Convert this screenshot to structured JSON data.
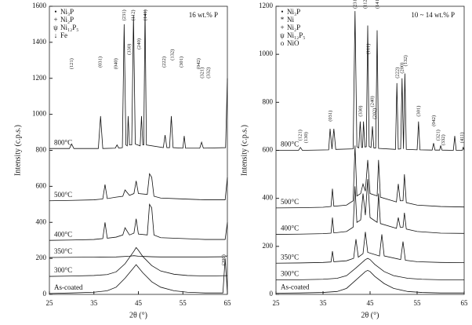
{
  "chart_data": [
    {
      "type": "line",
      "panel_label": "16 wt.% P",
      "xlabel": "2θ (°)",
      "ylabel": "Intensity (c.p.s.)",
      "xlim": [
        25,
        65
      ],
      "xticks": [
        25,
        35,
        45,
        55,
        65
      ],
      "ylim": [
        0,
        1600
      ],
      "yticks": [
        0,
        200,
        400,
        600,
        800,
        1000,
        1200,
        1400,
        1600
      ],
      "color": "#111111",
      "legend": [
        {
          "symbol": "•",
          "label": "Ni₃P"
        },
        {
          "symbol": "+",
          "label": "Ni₂P"
        },
        {
          "symbol": "ψ",
          "label": "Ni₁₂P₅"
        },
        {
          "symbol": "↓",
          "label": "Fe"
        }
      ],
      "series": [
        {
          "name": "As-coated",
          "x": [
            25,
            30,
            35,
            38,
            40,
            42,
            43,
            44,
            44.5,
            45,
            46,
            48,
            50,
            53,
            56,
            60,
            64,
            64.5,
            65
          ],
          "values": [
            5,
            8,
            12,
            20,
            40,
            90,
            120,
            150,
            165,
            150,
            120,
            70,
            40,
            20,
            12,
            8,
            8,
            200,
            10
          ]
        },
        {
          "name": "300°C",
          "x": [
            25,
            30,
            35,
            38,
            40,
            42,
            44,
            44.5,
            45,
            46,
            48,
            50,
            53,
            56,
            60,
            65
          ],
          "values": [
            100,
            102,
            105,
            110,
            125,
            170,
            240,
            260,
            245,
            210,
            160,
            130,
            112,
            105,
            102,
            104
          ]
        },
        {
          "name": "350°C",
          "x": [
            25,
            30,
            35,
            40,
            43,
            44,
            45,
            47,
            48,
            50,
            55,
            60,
            64.5,
            65
          ],
          "values": [
            205,
            206,
            207,
            208,
            212,
            215,
            212,
            210,
            209,
            208,
            208,
            208,
            209,
            215
          ]
        },
        {
          "name": "400°C",
          "x": [
            25,
            30,
            35,
            37,
            37.5,
            38,
            40,
            41.5,
            42,
            43,
            44,
            44.5,
            45,
            47,
            47.5,
            48,
            48.5,
            50,
            55,
            60,
            64.5,
            65
          ],
          "values": [
            300,
            302,
            305,
            310,
            400,
            312,
            318,
            330,
            370,
            330,
            340,
            420,
            335,
            330,
            500,
            480,
            330,
            315,
            310,
            305,
            305,
            400
          ]
        },
        {
          "name": "500°C",
          "x": [
            25,
            30,
            35,
            37,
            37.5,
            38,
            40,
            41.5,
            42,
            43,
            44,
            44.5,
            45,
            47,
            47.5,
            48,
            48.5,
            50,
            55,
            60,
            64.5,
            65
          ],
          "values": [
            520,
            522,
            525,
            530,
            610,
            532,
            540,
            545,
            580,
            550,
            560,
            630,
            560,
            555,
            670,
            650,
            545,
            535,
            530,
            525,
            525,
            650
          ]
        },
        {
          "name": "800°C",
          "x": [
            25,
            29.5,
            30,
            30.5,
            36,
            36.5,
            37,
            39.8,
            40.2,
            40.6,
            41.4,
            41.8,
            42.2,
            42.5,
            42.7,
            43,
            43.5,
            43.9,
            44.3,
            45.4,
            45.7,
            46,
            46.2,
            46.5,
            46.8,
            50.6,
            51,
            51.4,
            52,
            52.4,
            52.8,
            55,
            55.3,
            55.6,
            58.8,
            59.2,
            59.6,
            64.6,
            65
          ],
          "values": [
            810,
            810,
            835,
            810,
            810,
            990,
            810,
            812,
            830,
            812,
            815,
            1500,
            830,
            825,
            990,
            830,
            830,
            1550,
            835,
            825,
            990,
            830,
            830,
            1580,
            830,
            815,
            885,
            815,
            815,
            990,
            815,
            812,
            880,
            812,
            812,
            845,
            812,
            815,
            1200
          ]
        }
      ],
      "annotations": [
        {
          "text": "(121)",
          "x": 30,
          "y": 1250
        },
        {
          "text": "(031)",
          "x": 36.5,
          "y": 1260
        },
        {
          "text": "(040)",
          "x": 40,
          "y": 1250
        },
        {
          "text": "(231)",
          "x": 41.8,
          "y": 1520
        },
        {
          "text": "(330)",
          "x": 43,
          "y": 1330
        },
        {
          "text": "(112)",
          "x": 43.9,
          "y": 1520
        },
        {
          "text": "(240)",
          "x": 45.2,
          "y": 1360
        },
        {
          "text": "(141)",
          "x": 46.6,
          "y": 1520
        },
        {
          "text": "(222)",
          "x": 50.8,
          "y": 1260
        },
        {
          "text": "(132)",
          "x": 52.7,
          "y": 1300
        },
        {
          "text": "(301)",
          "x": 54.7,
          "y": 1260
        },
        {
          "text": "(042)",
          "x": 58.6,
          "y": 1250
        },
        {
          "text": "(321)",
          "x": 59.4,
          "y": 1200
        },
        {
          "text": "(332)",
          "x": 60.8,
          "y": 1200
        },
        {
          "text": "(200)",
          "x": 64.2,
          "y": 160
        }
      ]
    },
    {
      "type": "line",
      "panel_label": "10 ~ 14 wt.% P",
      "xlabel": "2θ (°)",
      "ylabel": "Intensity (c.p.s.)",
      "xlim": [
        25,
        65
      ],
      "xticks": [
        25,
        35,
        45,
        55,
        65
      ],
      "ylim": [
        0,
        1200
      ],
      "yticks": [
        0,
        200,
        400,
        600,
        800,
        1000,
        1200
      ],
      "color": "#111111",
      "legend": [
        {
          "symbol": "•",
          "label": "Ni₃P"
        },
        {
          "symbol": "*",
          "label": "Ni"
        },
        {
          "symbol": "+",
          "label": "Ni₂P"
        },
        {
          "symbol": "ψ",
          "label": "Ni₁₂P₅"
        },
        {
          "symbol": "o",
          "label": "NiO"
        }
      ],
      "series": [
        {
          "name": "As-coated",
          "x": [
            25,
            30,
            35,
            38,
            40,
            42,
            44,
            44.5,
            45,
            46,
            48,
            50,
            53,
            56,
            60,
            65
          ],
          "values": [
            5,
            6,
            8,
            12,
            25,
            60,
            95,
            100,
            95,
            75,
            45,
            25,
            12,
            8,
            6,
            6
          ]
        },
        {
          "name": "300°C",
          "x": [
            25,
            30,
            35,
            38,
            40,
            42,
            44,
            44.5,
            45,
            46,
            48,
            50,
            53,
            56,
            60,
            65
          ],
          "values": [
            60,
            61,
            63,
            67,
            78,
            110,
            145,
            150,
            145,
            125,
            95,
            78,
            67,
            63,
            61,
            61
          ]
        },
        {
          "name": "350°C",
          "x": [
            25,
            30,
            35,
            36.7,
            37,
            37.3,
            40,
            41.5,
            42,
            42.5,
            43.5,
            44,
            44.5,
            47,
            47.5,
            48,
            51.5,
            52,
            52.5,
            55,
            60,
            65
          ],
          "values": [
            130,
            131,
            133,
            135,
            180,
            136,
            140,
            150,
            230,
            155,
            170,
            260,
            175,
            160,
            250,
            160,
            145,
            220,
            142,
            136,
            133,
            132
          ]
        },
        {
          "name": "400°C",
          "x": [
            25,
            30,
            35,
            36.7,
            37,
            37.3,
            40,
            41.4,
            41.8,
            42.2,
            43,
            43.5,
            44,
            44.5,
            45,
            46.5,
            46.8,
            47.2,
            50.6,
            51,
            51.4,
            52,
            52.3,
            52.7,
            55,
            60,
            65
          ],
          "values": [
            250,
            251,
            253,
            255,
            320,
            256,
            262,
            280,
            450,
            300,
            310,
            420,
            330,
            480,
            320,
            300,
            420,
            295,
            275,
            320,
            280,
            280,
            340,
            272,
            262,
            255,
            254
          ]
        },
        {
          "name": "500°C",
          "x": [
            25,
            30,
            35,
            36.7,
            37,
            37.3,
            40,
            41.4,
            41.8,
            42.2,
            43,
            43.5,
            44,
            44.5,
            45,
            46.5,
            46.8,
            47.2,
            50.6,
            51,
            51.4,
            52,
            52.3,
            52.7,
            55,
            60,
            65
          ],
          "values": [
            360,
            361,
            363,
            366,
            440,
            367,
            372,
            390,
            620,
            410,
            420,
            460,
            430,
            560,
            420,
            410,
            560,
            405,
            385,
            460,
            390,
            390,
            500,
            382,
            372,
            366,
            364
          ]
        },
        {
          "name": "800°C",
          "x": [
            25,
            29.8,
            30.2,
            30.6,
            36.2,
            36.5,
            36.9,
            37.3,
            37.7,
            41.4,
            41.8,
            42.2,
            42.6,
            42.9,
            43.2,
            43.4,
            43.6,
            43.9,
            44.2,
            44.5,
            44.8,
            45.2,
            45.5,
            45.8,
            46.2,
            46.5,
            46.8,
            50.4,
            50.7,
            51,
            51.5,
            51.8,
            52.1,
            52.4,
            52.7,
            55,
            55.3,
            55.6,
            58.2,
            58.5,
            58.8,
            59.8,
            60,
            60.3,
            62.7,
            63,
            63.3,
            64.6,
            64.8,
            65
          ],
          "values": [
            600,
            600,
            612,
            600,
            602,
            690,
            605,
            690,
            604,
            606,
            1180,
            615,
            610,
            720,
            612,
            612,
            720,
            614,
            615,
            1120,
            616,
            612,
            700,
            610,
            610,
            1100,
            608,
            604,
            880,
            605,
            606,
            900,
            606,
            920,
            604,
            602,
            720,
            602,
            601,
            630,
            601,
            601,
            620,
            601,
            600,
            660,
            600,
            600,
            612,
            600
          ]
        }
      ],
      "annotations": [
        {
          "text": "(121)",
          "x": 30.2,
          "y": 640
        },
        {
          "text": "(130)",
          "x": 31.4,
          "y": 630
        },
        {
          "text": "(031)",
          "x": 36.6,
          "y": 720
        },
        {
          "text": "(231)",
          "x": 41.8,
          "y": 1190
        },
        {
          "text": "(330)",
          "x": 43,
          "y": 740
        },
        {
          "text": "(112)",
          "x": 44,
          "y": 1190
        },
        {
          "text": "(111)",
          "x": 44.7,
          "y": 1000
        },
        {
          "text": "(240)",
          "x": 45.5,
          "y": 780
        },
        {
          "text": "(202)",
          "x": 46,
          "y": 730
        },
        {
          "text": "(141)",
          "x": 46.6,
          "y": 1190
        },
        {
          "text": "(222)",
          "x": 50.8,
          "y": 900
        },
        {
          "text": "(200)",
          "x": 51.8,
          "y": 920
        },
        {
          "text": "(132)",
          "x": 52.6,
          "y": 950
        },
        {
          "text": "(301)",
          "x": 55.3,
          "y": 740
        },
        {
          "text": "(042)",
          "x": 58.6,
          "y": 700
        },
        {
          "text": "(321)",
          "x": 59.5,
          "y": 640
        },
        {
          "text": "(332)",
          "x": 60.6,
          "y": 620
        },
        {
          "text": "(411)",
          "x": 64.6,
          "y": 630
        }
      ]
    }
  ]
}
